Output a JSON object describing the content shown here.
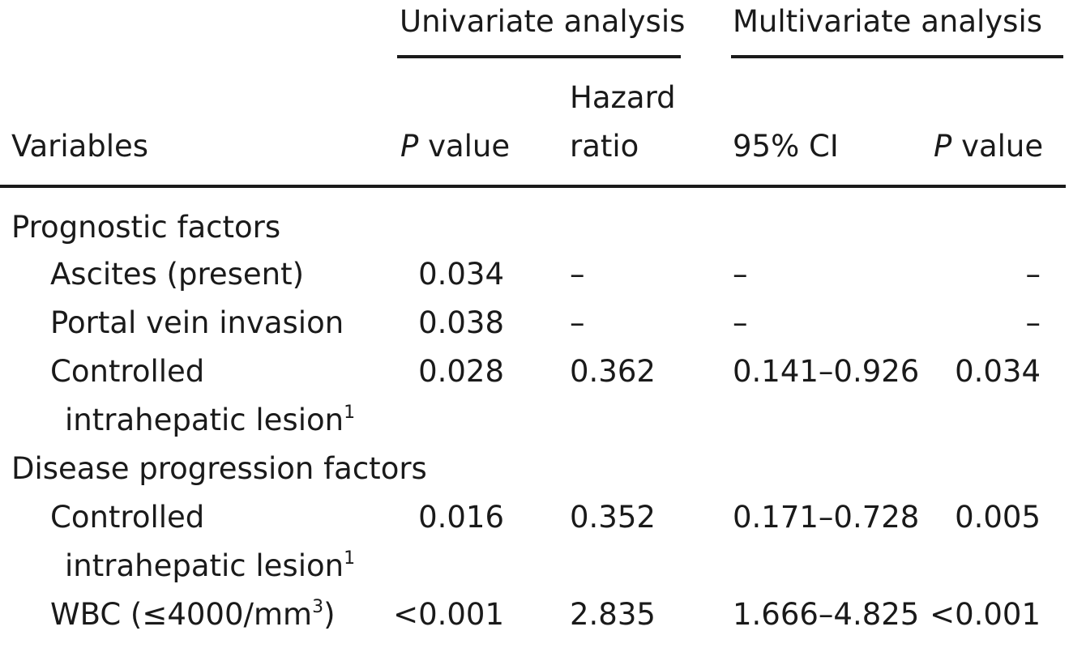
{
  "header": {
    "group_univariate": "Univariate analysis",
    "group_multivariate": "Multivariate analysis",
    "col_variables": "Variables",
    "col_p_value_italic": "P",
    "col_p_value_rest": " value",
    "col_hazard_line1": "Hazard",
    "col_hazard_line2": "ratio",
    "col_ci": "95% CI",
    "col_p_value2_italic": "P",
    "col_p_value2_rest": " value"
  },
  "sections": [
    {
      "label": "Prognostic factors",
      "rows": [
        {
          "variable": "Ascites (present)",
          "p_uni": "0.034",
          "hr": "–",
          "ci": "–",
          "p_multi": "–"
        },
        {
          "variable": "Portal vein invasion",
          "p_uni": "0.038",
          "hr": "–",
          "ci": "–",
          "p_multi": "–"
        },
        {
          "variable_line1": "Controlled",
          "variable_line2": "intrahepatic lesion",
          "footnote": "1",
          "p_uni": "0.028",
          "hr": "0.362",
          "ci": "0.141–0.926",
          "p_multi": "0.034"
        }
      ]
    },
    {
      "label": "Disease progression factors",
      "rows": [
        {
          "variable_line1": "Controlled",
          "variable_line2": "intrahepatic lesion",
          "footnote": "1",
          "p_uni": "0.016",
          "hr": "0.352",
          "ci": "0.171–0.728",
          "p_multi": "0.005"
        },
        {
          "variable_pre": "WBC (≤4000/mm",
          "variable_sup": "3",
          "variable_post": ")",
          "p_uni": "<0.001",
          "hr": "2.835",
          "ci": "1.666–4.825",
          "p_multi": "<0.001"
        }
      ]
    }
  ]
}
